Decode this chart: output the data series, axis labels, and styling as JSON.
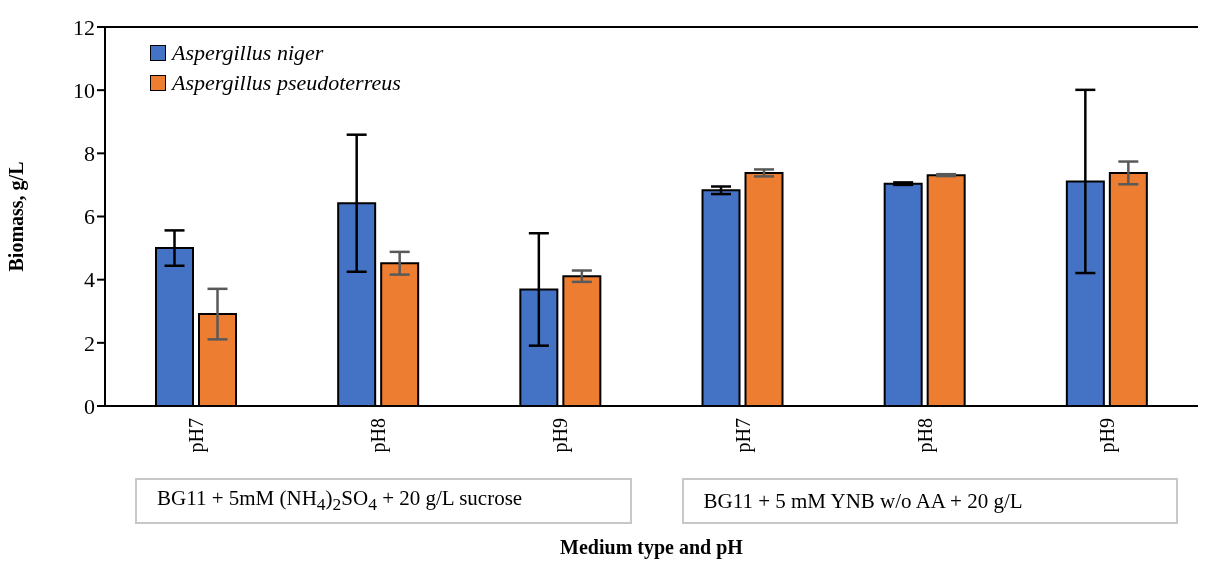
{
  "chart_data": {
    "type": "bar",
    "xlabel": "Medium type and pH",
    "ylabel": "Biomass, g/L",
    "categories": [
      "pH7",
      "pH8",
      "pH9",
      "pH7",
      "pH8",
      "pH9"
    ],
    "series": [
      {
        "name": "Aspergillus niger",
        "color": "#4472c4",
        "values": [
          5.0,
          6.42,
          3.69,
          6.83,
          7.04,
          7.11
        ],
        "errors": [
          0.56,
          2.17,
          1.78,
          0.12,
          0.04,
          2.9
        ]
      },
      {
        "name": "Aspergillus pseudoterreus",
        "color": "#ed7d31",
        "values": [
          2.91,
          4.52,
          4.11,
          7.38,
          7.31,
          7.38
        ],
        "errors": [
          0.8,
          0.36,
          0.18,
          0.11,
          0.03,
          0.36
        ]
      }
    ],
    "ylim": [
      0,
      12
    ],
    "yticks": [
      0,
      2,
      4,
      6,
      8,
      10,
      12
    ],
    "grid": false,
    "legend": "top left",
    "annotations": [
      "BG11 + 5mM (NH$_{4}$)$_{2}$SO$_{4}$ + 20 g/L sucrose",
      "BG11 + 5 mM YNB w/o AA + 20 g/L"
    ]
  }
}
